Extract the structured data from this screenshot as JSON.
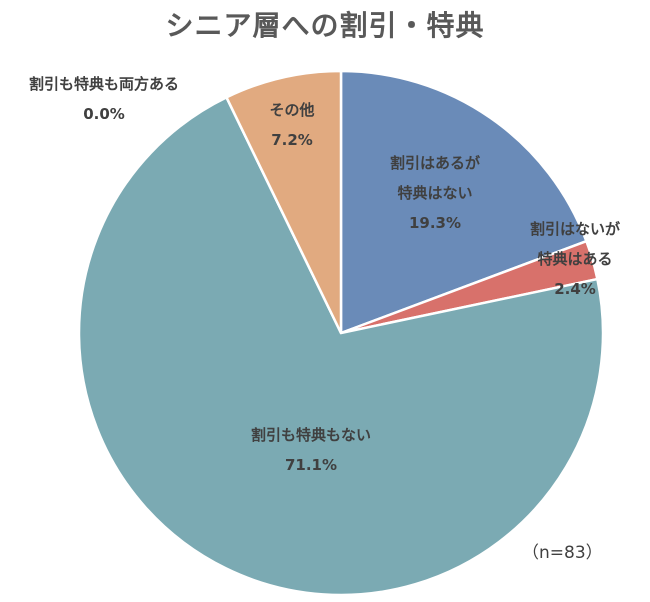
{
  "chart_data": {
    "type": "pie",
    "title": "シニア層への割引・特典",
    "start": "top",
    "direction": "clockwise",
    "slices": [
      {
        "label": [
          "割引はあるが",
          "特典はない"
        ],
        "value": 19.3,
        "display": "19.3%",
        "color": "#6A8BB8"
      },
      {
        "label": [
          "割引はないが",
          "特典はある"
        ],
        "value": 2.4,
        "display": "2.4%",
        "color": "#D8716B"
      },
      {
        "label": [
          "割引も特典もない"
        ],
        "value": 71.1,
        "display": "71.1%",
        "color": "#7BAAB3"
      },
      {
        "label": [
          "割引も特典も両方ある"
        ],
        "value": 0.0,
        "display": "0.0%",
        "color": "#7BAAB3"
      },
      {
        "label": [
          "その他"
        ],
        "value": 7.2,
        "display": "7.2%",
        "color": "#E1AA80"
      }
    ],
    "note": "（n=83）"
  }
}
